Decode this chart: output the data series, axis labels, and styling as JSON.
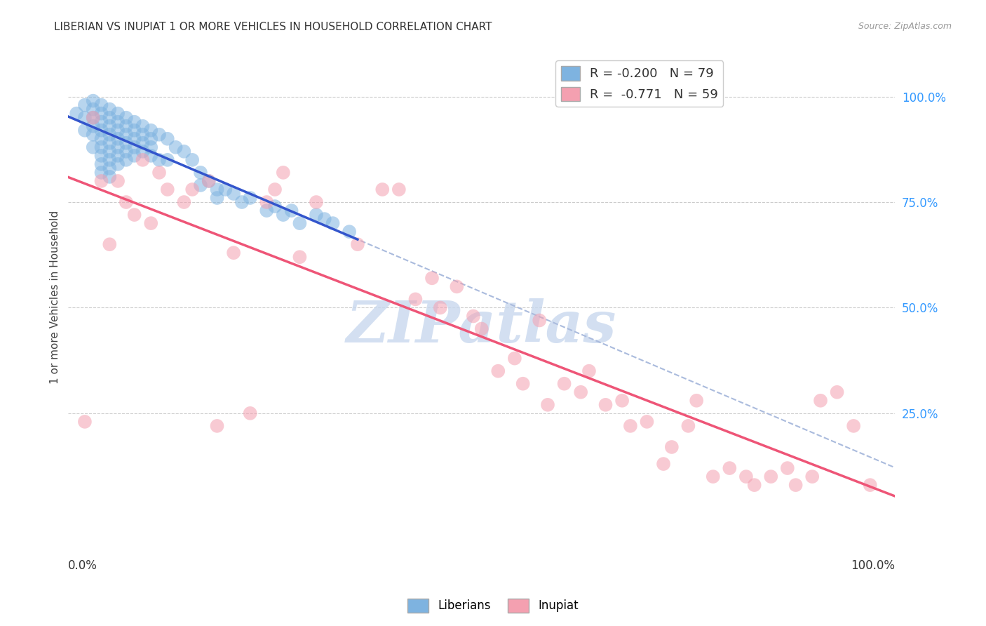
{
  "title": "LIBERIAN VS INUPIAT 1 OR MORE VEHICLES IN HOUSEHOLD CORRELATION CHART",
  "source": "Source: ZipAtlas.com",
  "ylabel": "1 or more Vehicles in Household",
  "legend_liberians": "Liberians",
  "legend_inupiat": "Inupiat",
  "R_liberians": -0.2,
  "N_liberians": 79,
  "R_inupiat": -0.771,
  "N_inupiat": 59,
  "color_liberians": "#7EB3E0",
  "color_inupiat": "#F4A0B0",
  "color_trendline_liberians": "#3355CC",
  "color_trendline_inupiat": "#EE5577",
  "color_dashed": "#AABBDD",
  "watermark_color": "#C8D8EE",
  "ytick_labels": [
    "100.0%",
    "75.0%",
    "50.0%",
    "25.0%"
  ],
  "ytick_values": [
    1.0,
    0.75,
    0.5,
    0.25
  ],
  "xlim": [
    0.0,
    1.0
  ],
  "ylim": [
    -0.05,
    1.1
  ],
  "liberians_x": [
    0.01,
    0.02,
    0.02,
    0.02,
    0.03,
    0.03,
    0.03,
    0.03,
    0.03,
    0.03,
    0.04,
    0.04,
    0.04,
    0.04,
    0.04,
    0.04,
    0.04,
    0.04,
    0.04,
    0.05,
    0.05,
    0.05,
    0.05,
    0.05,
    0.05,
    0.05,
    0.05,
    0.05,
    0.06,
    0.06,
    0.06,
    0.06,
    0.06,
    0.06,
    0.06,
    0.07,
    0.07,
    0.07,
    0.07,
    0.07,
    0.07,
    0.08,
    0.08,
    0.08,
    0.08,
    0.08,
    0.09,
    0.09,
    0.09,
    0.09,
    0.1,
    0.1,
    0.1,
    0.1,
    0.11,
    0.11,
    0.12,
    0.12,
    0.13,
    0.14,
    0.15,
    0.16,
    0.16,
    0.17,
    0.18,
    0.18,
    0.19,
    0.2,
    0.21,
    0.22,
    0.24,
    0.25,
    0.26,
    0.27,
    0.28,
    0.3,
    0.31,
    0.32,
    0.34
  ],
  "liberians_y": [
    0.96,
    0.98,
    0.95,
    0.92,
    0.99,
    0.97,
    0.95,
    0.93,
    0.91,
    0.88,
    0.98,
    0.96,
    0.94,
    0.92,
    0.9,
    0.88,
    0.86,
    0.84,
    0.82,
    0.97,
    0.95,
    0.93,
    0.91,
    0.89,
    0.87,
    0.85,
    0.83,
    0.81,
    0.96,
    0.94,
    0.92,
    0.9,
    0.88,
    0.86,
    0.84,
    0.95,
    0.93,
    0.91,
    0.89,
    0.87,
    0.85,
    0.94,
    0.92,
    0.9,
    0.88,
    0.86,
    0.93,
    0.91,
    0.89,
    0.87,
    0.92,
    0.9,
    0.88,
    0.86,
    0.91,
    0.85,
    0.9,
    0.85,
    0.88,
    0.87,
    0.85,
    0.82,
    0.79,
    0.8,
    0.78,
    0.76,
    0.78,
    0.77,
    0.75,
    0.76,
    0.73,
    0.74,
    0.72,
    0.73,
    0.7,
    0.72,
    0.71,
    0.7,
    0.68
  ],
  "inupiat_x": [
    0.02,
    0.03,
    0.04,
    0.05,
    0.06,
    0.07,
    0.08,
    0.09,
    0.1,
    0.11,
    0.12,
    0.14,
    0.15,
    0.17,
    0.18,
    0.2,
    0.22,
    0.24,
    0.25,
    0.26,
    0.28,
    0.3,
    0.35,
    0.38,
    0.4,
    0.42,
    0.44,
    0.45,
    0.47,
    0.49,
    0.5,
    0.52,
    0.54,
    0.55,
    0.57,
    0.58,
    0.6,
    0.62,
    0.63,
    0.65,
    0.67,
    0.68,
    0.7,
    0.72,
    0.73,
    0.75,
    0.76,
    0.78,
    0.8,
    0.82,
    0.83,
    0.85,
    0.87,
    0.88,
    0.9,
    0.91,
    0.93,
    0.95,
    0.97
  ],
  "inupiat_y": [
    0.23,
    0.95,
    0.8,
    0.65,
    0.8,
    0.75,
    0.72,
    0.85,
    0.7,
    0.82,
    0.78,
    0.75,
    0.78,
    0.8,
    0.22,
    0.63,
    0.25,
    0.75,
    0.78,
    0.82,
    0.62,
    0.75,
    0.65,
    0.78,
    0.78,
    0.52,
    0.57,
    0.5,
    0.55,
    0.48,
    0.45,
    0.35,
    0.38,
    0.32,
    0.47,
    0.27,
    0.32,
    0.3,
    0.35,
    0.27,
    0.28,
    0.22,
    0.23,
    0.13,
    0.17,
    0.22,
    0.28,
    0.1,
    0.12,
    0.1,
    0.08,
    0.1,
    0.12,
    0.08,
    0.1,
    0.28,
    0.3,
    0.22,
    0.08
  ]
}
